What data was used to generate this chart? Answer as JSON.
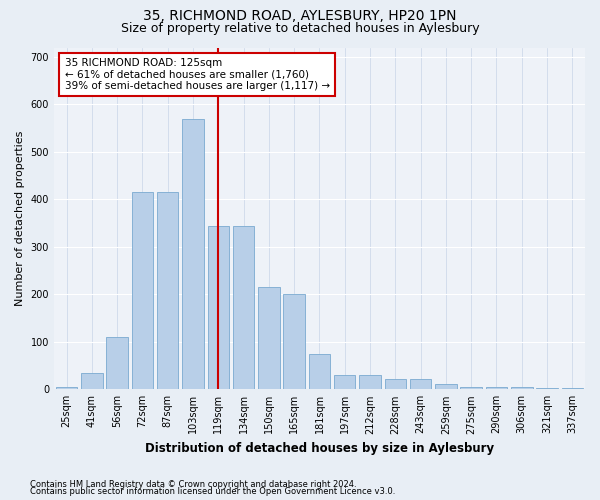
{
  "title1": "35, RICHMOND ROAD, AYLESBURY, HP20 1PN",
  "title2": "Size of property relative to detached houses in Aylesbury",
  "xlabel": "Distribution of detached houses by size in Aylesbury",
  "ylabel": "Number of detached properties",
  "categories": [
    "25sqm",
    "41sqm",
    "56sqm",
    "72sqm",
    "87sqm",
    "103sqm",
    "119sqm",
    "134sqm",
    "150sqm",
    "165sqm",
    "181sqm",
    "197sqm",
    "212sqm",
    "228sqm",
    "243sqm",
    "259sqm",
    "275sqm",
    "290sqm",
    "306sqm",
    "321sqm",
    "337sqm"
  ],
  "values": [
    5,
    35,
    110,
    415,
    415,
    570,
    345,
    345,
    215,
    200,
    75,
    30,
    30,
    22,
    22,
    12,
    5,
    5,
    5,
    2,
    2
  ],
  "bar_color": "#b8cfe8",
  "bar_edge_color": "#7aaad0",
  "vline_color": "#cc0000",
  "vline_x_idx": 6,
  "annotation_text": "35 RICHMOND ROAD: 125sqm\n← 61% of detached houses are smaller (1,760)\n39% of semi-detached houses are larger (1,117) →",
  "annotation_box_facecolor": "#ffffff",
  "annotation_box_edgecolor": "#cc0000",
  "ylim": [
    0,
    720
  ],
  "yticks": [
    0,
    100,
    200,
    300,
    400,
    500,
    600,
    700
  ],
  "footnote1": "Contains HM Land Registry data © Crown copyright and database right 2024.",
  "footnote2": "Contains public sector information licensed under the Open Government Licence v3.0.",
  "bg_color": "#e8eef5",
  "plot_bg_color": "#eef2f8",
  "title1_fontsize": 10,
  "title2_fontsize": 9,
  "xlabel_fontsize": 8.5,
  "ylabel_fontsize": 8,
  "tick_fontsize": 7,
  "annotation_fontsize": 7.5,
  "footnote_fontsize": 6
}
